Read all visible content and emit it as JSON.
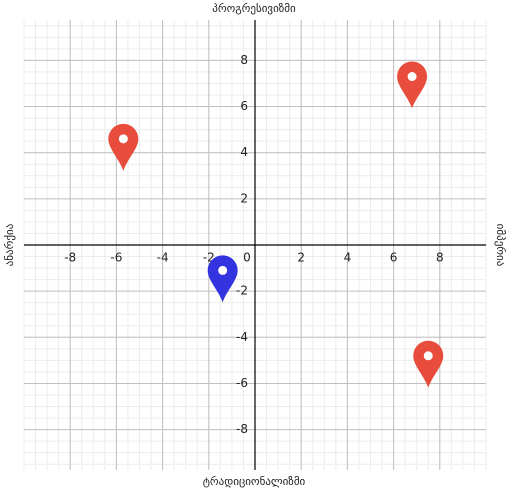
{
  "chart_data": {
    "type": "scatter",
    "top_label": "პროგრესივიზმი",
    "bottom_label": "ტრადიციონალიზმი",
    "left_label": "ანარქია",
    "right_label": "იმპერია",
    "x": [
      -5.7,
      6.8,
      -1.4,
      7.5
    ],
    "y": [
      4.6,
      7.3,
      -1.1,
      -4.8
    ],
    "colors": [
      "#e74c3c",
      "#e74c3c",
      "#3333e0",
      "#e74c3c"
    ],
    "xlim": [
      -10,
      10
    ],
    "ylim": [
      -9.75,
      9.75
    ],
    "xticks": [
      -8,
      -6,
      -4,
      -2,
      0,
      2,
      4,
      6,
      8
    ],
    "yticks": [
      -8,
      -6,
      -4,
      -2,
      2,
      4,
      6,
      8
    ],
    "grid": true,
    "minor_grid": 0.5
  }
}
